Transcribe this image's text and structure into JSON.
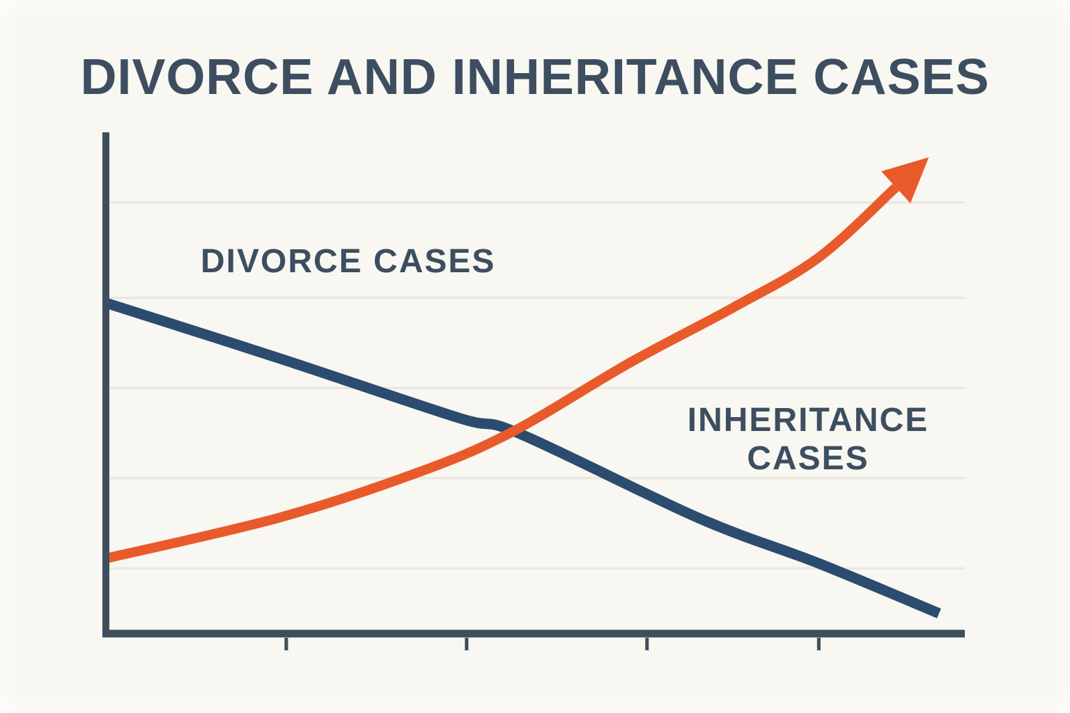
{
  "title": {
    "text": "DIVORCE AND INHERITANCE CASES"
  },
  "labels": {
    "divorce": "DIVORCE CASES",
    "inheritance_line1": "INHERITANCE",
    "inheritance_line2": "CASES"
  },
  "colors": {
    "background": "#f8f7f1",
    "text": "#3d4e60",
    "axis": "#3e4e5c",
    "grid": "#e9e8e2",
    "divorce_line": "#2b4c6e",
    "inheritance_line": "#e95a2b"
  },
  "chart_data": {
    "type": "line",
    "title": "DIVORCE AND INHERITANCE CASES",
    "xlabel": "",
    "ylabel": "",
    "xlim": [
      0,
      100
    ],
    "ylim": [
      0,
      100
    ],
    "grid_y_values": [
      13,
      31,
      49,
      67,
      86
    ],
    "x_axis_ticks": [
      21,
      42,
      63,
      83
    ],
    "axis_tick_labels": [],
    "legend_position": "inline-labels",
    "series": [
      {
        "name": "DIVORCE CASES",
        "color": "#2b4c6e",
        "stroke_width": 15,
        "arrow": false,
        "x": [
          0,
          20,
          41,
          48,
          69,
          83,
          97
        ],
        "y": [
          66,
          55,
          43,
          40,
          23,
          14,
          4
        ]
      },
      {
        "name": "INHERITANCE CASES",
        "color": "#e95a2b",
        "stroke_width": 14,
        "arrow": true,
        "x": [
          0,
          20,
          36,
          47,
          61,
          73,
          83,
          92
        ],
        "y": [
          15,
          23,
          32,
          40,
          54,
          65,
          75,
          89
        ]
      }
    ]
  }
}
